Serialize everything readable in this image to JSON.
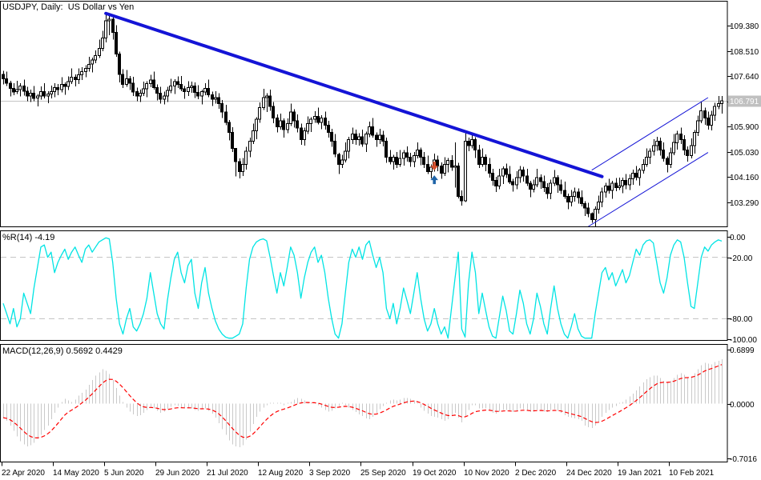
{
  "window": {
    "bg": "#FFFFFF"
  },
  "chart_data": [
    {
      "type": "candlestick",
      "symbol": "USDJPY",
      "timeframe": "Daily",
      "pane_label": "USDJPY, Daily:  US Dollar vs Yen",
      "x_tick_labels": [
        "22 Apr 2020",
        "14 May 2020",
        "5 Jun 2020",
        "29 Jun 2020",
        "21 Jul 2020",
        "12 Aug 2020",
        "3 Sep 2020",
        "25 Sep 2020",
        "19 Oct 2020",
        "10 Nov 2020",
        "2 Dec 2020",
        "24 Dec 2020",
        "19 Jan 2021",
        "10 Feb 2021"
      ],
      "bars_per_x_tick": 15,
      "y_tick_labels": [
        "109.380",
        "108.510",
        "107.640",
        "106.770",
        "105.900",
        "105.030",
        "104.160",
        "103.290"
      ],
      "current_price": 106.791,
      "current_price_label": "106.791",
      "open_first": 107.7,
      "close": [
        107.55,
        107.4,
        107.22,
        107.1,
        107.18,
        107.3,
        107.12,
        106.95,
        107.05,
        106.88,
        106.95,
        107.1,
        106.95,
        107.02,
        107.1,
        107.25,
        107.18,
        107.35,
        107.28,
        107.45,
        107.6,
        107.52,
        107.68,
        107.8,
        107.9,
        108.05,
        108.2,
        108.35,
        108.6,
        108.95,
        109.55,
        109.6,
        109.15,
        108.4,
        107.7,
        107.35,
        107.55,
        107.4,
        107.1,
        106.95,
        107.05,
        107.2,
        107.38,
        107.5,
        107.25,
        107.05,
        106.85,
        106.95,
        107.15,
        107.3,
        107.45,
        107.35,
        107.2,
        107.1,
        107.25,
        107.3,
        107.08,
        106.95,
        107.1,
        107.22,
        107.0,
        106.85,
        106.9,
        106.7,
        106.4,
        106.05,
        105.7,
        105.15,
        104.7,
        104.35,
        104.6,
        105.05,
        105.4,
        105.75,
        106.15,
        106.55,
        106.9,
        106.95,
        106.6,
        106.2,
        105.9,
        106.1,
        105.8,
        106.0,
        106.4,
        106.1,
        105.85,
        105.45,
        105.75,
        106.0,
        106.15,
        106.25,
        106.05,
        106.2,
        105.95,
        105.7,
        105.4,
        104.95,
        104.6,
        104.75,
        105.05,
        105.45,
        105.65,
        105.45,
        105.55,
        105.3,
        105.65,
        105.9,
        105.6,
        105.45,
        105.6,
        105.4,
        104.85,
        104.7,
        104.85,
        104.6,
        104.8,
        105.0,
        104.85,
        104.7,
        104.9,
        105.1,
        104.85,
        104.6,
        104.35,
        104.5,
        104.75,
        104.55,
        104.3,
        104.6,
        104.74,
        104.5,
        104.55,
        103.5,
        103.35,
        105.4,
        105.25,
        105.45,
        105.1,
        104.6,
        104.85,
        104.6,
        104.3,
        104.05,
        103.85,
        104.2,
        104.45,
        104.25,
        104.0,
        103.9,
        104.15,
        104.4,
        104.2,
        103.95,
        103.75,
        103.9,
        104.15,
        104.0,
        103.8,
        103.6,
        103.95,
        104.15,
        103.9,
        103.7,
        103.5,
        103.3,
        103.5,
        103.65,
        103.45,
        103.25,
        103.1,
        102.9,
        102.7,
        103.05,
        103.3,
        103.65,
        103.85,
        103.7,
        103.95,
        103.8,
        103.85,
        104.05,
        103.9,
        104.1,
        104.3,
        104.15,
        104.4,
        104.6,
        104.85,
        105.05,
        105.25,
        105.4,
        105.1,
        104.8,
        104.6,
        105.0,
        105.35,
        105.65,
        105.45,
        105.1,
        104.9,
        105.25,
        105.7,
        106.1,
        106.45,
        106.2,
        105.95,
        106.3,
        106.6,
        106.7,
        106.79
      ],
      "wick_high_pattern": [
        0.12,
        0.25,
        0.08,
        0.18,
        0.3,
        0.1,
        0.22,
        0.15
      ],
      "wick_low_pattern": [
        0.2,
        0.1,
        0.28,
        0.12,
        0.08,
        0.24,
        0.15,
        0.18
      ],
      "extreme_overrides": {
        "29": [
          109.2,
          108.5
        ],
        "30": [
          109.85,
          108.8
        ],
        "31": [
          109.8,
          109.05
        ],
        "32": [
          109.7,
          108.9
        ],
        "68": [
          105.05,
          104.19
        ],
        "77": [
          107.05,
          106.4
        ],
        "98": [
          105.0,
          104.27
        ],
        "132": [
          105.35,
          103.8
        ],
        "133": [
          104.65,
          103.43
        ],
        "134": [
          103.7,
          103.18
        ],
        "135": [
          105.68,
          103.3
        ],
        "172": [
          102.95,
          102.59
        ],
        "210": [
          106.95,
          106.35
        ]
      },
      "overlays": {
        "trendline": {
          "from": {
            "bar": 30,
            "price": 109.8
          },
          "to": {
            "bar": 175,
            "price": 104.18
          },
          "color": "#1414D6",
          "width": 4
        },
        "channel_upper": {
          "from": {
            "bar": 172,
            "price": 104.4
          },
          "to": {
            "bar": 206,
            "price": 106.9
          },
          "color": "#1414D6",
          "width": 1
        },
        "channel_lower": {
          "from": {
            "bar": 171,
            "price": 102.46
          },
          "to": {
            "bar": 206,
            "price": 105.01
          },
          "color": "#1414D6",
          "width": 1
        },
        "markers": [
          {
            "bar": 126,
            "price": 104.47,
            "shape": "arrow-down",
            "color": "#D4502E"
          },
          {
            "bar": 126,
            "price": 104.14,
            "shape": "arrow-up",
            "color": "#1F64A8"
          }
        ]
      },
      "colors": {
        "bull_fill": "#FFFFFF",
        "bear_fill": "#000000",
        "outline": "#000000",
        "bid_line": "#C4C4C4",
        "tag_bg": "#C0C0C0",
        "tag_text": "#FFFFFF"
      }
    },
    {
      "type": "line",
      "indicator": "Williams %R",
      "period": 14,
      "pane_label": "%R(14) -4.19",
      "current_value": -4.19,
      "line_color": "#00E4E4",
      "level_color": "#C0C0C0",
      "dashed_levels": [
        -20,
        -80
      ],
      "y_tick_labels": [
        "0.00",
        "-20.00",
        "-80.00",
        "-100.00"
      ],
      "y_range": [
        0,
        -100
      ],
      "values": [
        -65,
        -75,
        -85,
        -70,
        -88,
        -80,
        -55,
        -65,
        -75,
        -50,
        -30,
        -10,
        -8,
        -20,
        -15,
        -35,
        -25,
        -18,
        -12,
        -22,
        -15,
        -10,
        -18,
        -25,
        -12,
        -8,
        -15,
        -10,
        -5,
        -3,
        -1,
        -2,
        -25,
        -60,
        -85,
        -95,
        -80,
        -70,
        -88,
        -92,
        -85,
        -75,
        -60,
        -35,
        -55,
        -75,
        -85,
        -90,
        -62,
        -40,
        -22,
        -15,
        -35,
        -45,
        -28,
        -22,
        -55,
        -70,
        -45,
        -30,
        -55,
        -70,
        -82,
        -90,
        -95,
        -98,
        -99,
        -99,
        -97,
        -95,
        -85,
        -50,
        -22,
        -10,
        -5,
        -3,
        -2,
        -4,
        -20,
        -38,
        -55,
        -35,
        -48,
        -30,
        -10,
        -18,
        -35,
        -60,
        -40,
        -25,
        -15,
        -10,
        -25,
        -18,
        -35,
        -60,
        -80,
        -95,
        -99,
        -85,
        -55,
        -25,
        -12,
        -20,
        -10,
        -22,
        -8,
        -4,
        -18,
        -30,
        -20,
        -35,
        -70,
        -80,
        -65,
        -85,
        -70,
        -50,
        -62,
        -75,
        -55,
        -35,
        -60,
        -80,
        -92,
        -85,
        -70,
        -85,
        -95,
        -88,
        -99,
        -70,
        -42,
        -15,
        -90,
        -98,
        -45,
        -15,
        -35,
        -75,
        -55,
        -72,
        -88,
        -97,
        -99,
        -78,
        -58,
        -72,
        -92,
        -95,
        -75,
        -52,
        -65,
        -85,
        -95,
        -80,
        -55,
        -68,
        -85,
        -95,
        -70,
        -48,
        -70,
        -85,
        -95,
        -99,
        -88,
        -75,
        -90,
        -97,
        -99,
        -99,
        -99,
        -75,
        -55,
        -35,
        -30,
        -42,
        -35,
        -48,
        -40,
        -32,
        -45,
        -38,
        -25,
        -12,
        -18,
        -8,
        -4,
        -3,
        -6,
        -25,
        -45,
        -55,
        -40,
        -18,
        -8,
        -3,
        -5,
        -20,
        -45,
        -68,
        -70,
        -45,
        -20,
        -10,
        -14,
        -8,
        -5,
        -3,
        -4.19
      ]
    },
    {
      "type": "macd",
      "pane_label": "MACD(12,26,9) 0.5692 0.4429",
      "params": [
        12,
        26,
        9
      ],
      "main_value": 0.5692,
      "signal_value": 0.4429,
      "histogram_color": "#C9C9C9",
      "signal_color": "#FF0000",
      "signal_ema_period": 9,
      "y_tick_labels": [
        "0.6899",
        "0.0000",
        "-0.7016"
      ],
      "main": [
        -0.18,
        -0.22,
        -0.28,
        -0.35,
        -0.42,
        -0.48,
        -0.52,
        -0.55,
        -0.53,
        -0.5,
        -0.45,
        -0.4,
        -0.34,
        -0.28,
        -0.2,
        -0.12,
        -0.05,
        0.02,
        0.06,
        0.04,
        0.02,
        0.05,
        0.1,
        0.14,
        0.18,
        0.24,
        0.3,
        0.36,
        0.4,
        0.44,
        0.42,
        0.38,
        0.3,
        0.2,
        0.1,
        0.02,
        -0.05,
        -0.1,
        -0.14,
        -0.16,
        -0.15,
        -0.12,
        -0.08,
        -0.05,
        -0.06,
        -0.09,
        -0.12,
        -0.1,
        -0.07,
        -0.04,
        -0.02,
        -0.03,
        -0.05,
        -0.06,
        -0.05,
        -0.06,
        -0.08,
        -0.09,
        -0.07,
        -0.06,
        -0.09,
        -0.13,
        -0.18,
        -0.25,
        -0.33,
        -0.4,
        -0.47,
        -0.52,
        -0.55,
        -0.56,
        -0.53,
        -0.46,
        -0.36,
        -0.26,
        -0.17,
        -0.1,
        -0.05,
        -0.02,
        0.0,
        0.01,
        0.0,
        -0.01,
        -0.02,
        0.0,
        0.02,
        0.05,
        0.07,
        0.06,
        0.04,
        0.01,
        0.0,
        0.01,
        -0.02,
        -0.05,
        -0.08,
        -0.1,
        -0.09,
        -0.06,
        -0.03,
        -0.01,
        -0.02,
        -0.05,
        -0.08,
        -0.11,
        -0.14,
        -0.16,
        -0.19,
        -0.2,
        -0.17,
        -0.12,
        -0.07,
        -0.03,
        0.01,
        0.04,
        0.05,
        0.04,
        0.05,
        0.07,
        0.07,
        0.06,
        0.04,
        0.0,
        -0.05,
        -0.09,
        -0.13,
        -0.16,
        -0.17,
        -0.18,
        -0.2,
        -0.22,
        -0.2,
        -0.16,
        -0.12,
        -0.18,
        -0.24,
        -0.16,
        -0.08,
        -0.02,
        -0.02,
        -0.06,
        -0.06,
        -0.06,
        -0.09,
        -0.12,
        -0.13,
        -0.1,
        -0.08,
        -0.08,
        -0.1,
        -0.11,
        -0.09,
        -0.06,
        -0.07,
        -0.09,
        -0.11,
        -0.1,
        -0.08,
        -0.08,
        -0.1,
        -0.11,
        -0.08,
        -0.07,
        -0.09,
        -0.12,
        -0.15,
        -0.17,
        -0.18,
        -0.19,
        -0.2,
        -0.22,
        -0.28,
        -0.3,
        -0.31,
        -0.28,
        -0.23,
        -0.17,
        -0.12,
        -0.08,
        -0.05,
        -0.03,
        -0.01,
        0.02,
        0.05,
        0.09,
        0.13,
        0.17,
        0.22,
        0.27,
        0.31,
        0.34,
        0.36,
        0.36,
        0.33,
        0.29,
        0.27,
        0.29,
        0.33,
        0.37,
        0.39,
        0.37,
        0.34,
        0.35,
        0.39,
        0.44,
        0.49,
        0.52,
        0.51,
        0.5,
        0.53,
        0.55,
        0.5692
      ]
    }
  ]
}
